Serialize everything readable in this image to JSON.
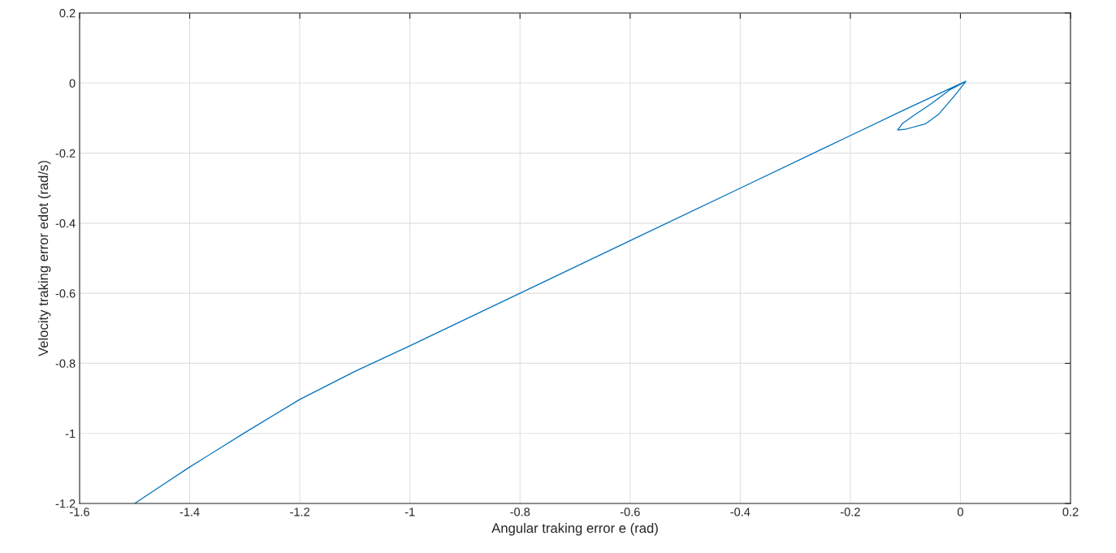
{
  "chart_data": {
    "type": "line",
    "xlabel": "Angular traking error e (rad)",
    "ylabel": "Velocity traking error edot (rad/s)",
    "series": [
      {
        "color": "#0072bd",
        "x": [
          -1.5,
          -1.45,
          -1.4,
          -1.3,
          -1.2,
          -1.1,
          -1.0,
          -0.8,
          -0.6,
          -0.4,
          -0.2,
          -0.1,
          0.0,
          0.01,
          -0.02,
          -0.052,
          -0.087,
          -0.105,
          -0.114,
          -0.1,
          -0.063,
          -0.04,
          -0.01,
          0.01
        ],
        "values": [
          -1.2,
          -1.148,
          -1.096,
          -0.998,
          -0.903,
          -0.823,
          -0.75,
          -0.6,
          -0.45,
          -0.3,
          -0.15,
          -0.075,
          -0.002,
          0.005,
          -0.02,
          -0.058,
          -0.095,
          -0.115,
          -0.134,
          -0.132,
          -0.116,
          -0.09,
          -0.035,
          0.005
        ]
      }
    ],
    "xlim": [
      -1.6,
      0.2
    ],
    "xticks": [
      -1.6,
      -1.4,
      -1.2,
      -1,
      -0.8,
      -0.6,
      -0.4,
      -0.2,
      0,
      0.2
    ],
    "ylim": [
      -1.2,
      0.2
    ],
    "yticks": [
      -1.2,
      -1,
      -0.8,
      -0.6,
      -0.4,
      -0.2,
      0,
      0.2
    ],
    "grid": true
  }
}
